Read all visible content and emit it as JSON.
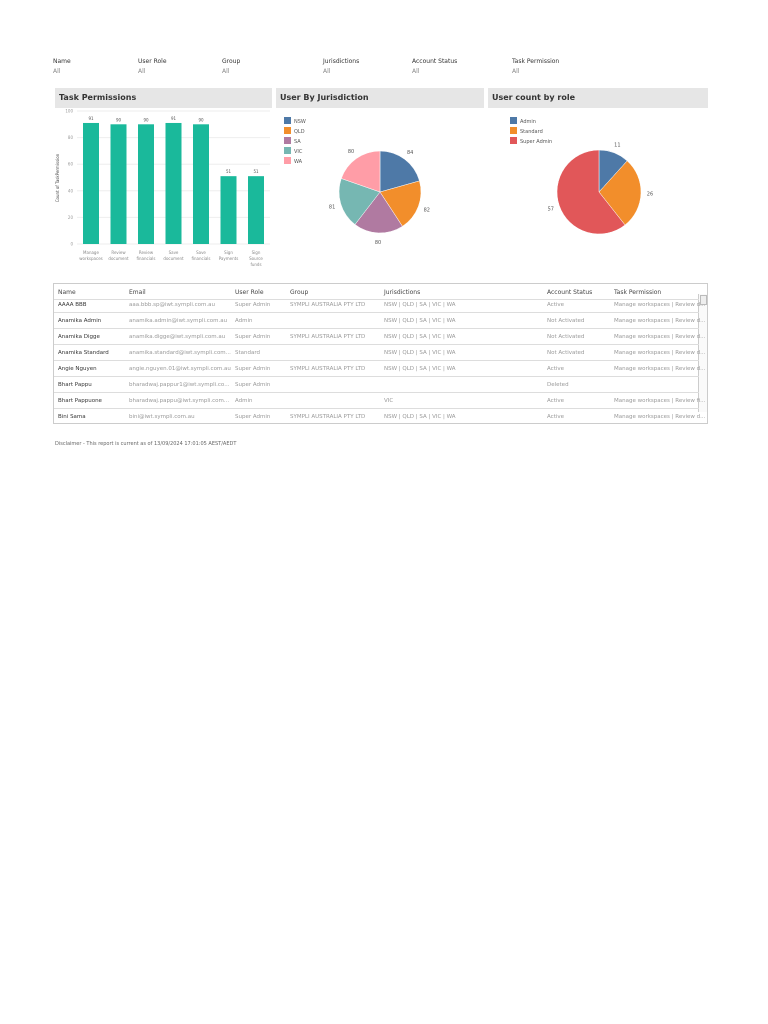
{
  "filters": [
    {
      "label": "Name",
      "value": "All"
    },
    {
      "label": "User Role",
      "value": "All"
    },
    {
      "label": "Group",
      "value": "All"
    },
    {
      "label": "Jurisdictions",
      "value": "All"
    },
    {
      "label": "Account Status",
      "value": "All"
    },
    {
      "label": "Task Permission",
      "value": "All"
    }
  ],
  "panels": {
    "task": "Task Permissions",
    "jur": "User By Jurisdiction",
    "role": "User count by role"
  },
  "chart_data": [
    {
      "type": "bar",
      "title": "Task Permissions",
      "ylabel": "Count of TaskPermission",
      "ylim": [
        0,
        100
      ],
      "yticks": [
        "0",
        "20",
        "40",
        "60",
        "80",
        "100"
      ],
      "categories": [
        "Manage workspaces",
        "Review document",
        "Review financials",
        "Save document",
        "Save financials",
        "Sign Payments",
        "Sign Source funds"
      ],
      "values": [
        91,
        90,
        90,
        91,
        90,
        51,
        51
      ],
      "color": "#1ab99b"
    },
    {
      "type": "pie",
      "title": "User By Jurisdiction",
      "categories": [
        "NSW",
        "QLD",
        "SA",
        "VIC",
        "WA"
      ],
      "values": [
        84,
        82,
        80,
        81,
        80
      ],
      "colors": [
        "#4e79a7",
        "#f28e2b",
        "#b07aa1",
        "#76b7b2",
        "#ff9da7"
      ],
      "legend": "top-left"
    },
    {
      "type": "pie",
      "title": "User count by role",
      "categories": [
        "Admin",
        "Standard",
        "Super Admin"
      ],
      "values": [
        11,
        26,
        57
      ],
      "colors": [
        "#4e79a7",
        "#f28e2b",
        "#e15759"
      ],
      "legend": "top-left"
    }
  ],
  "table": {
    "headers": [
      "Name",
      "Email",
      "User Role",
      "Group",
      "Jurisdictions",
      "Account Status",
      "Task Permission"
    ],
    "rows": [
      [
        "AAAA BBB",
        "aaa.bbb.sp@iwt.sympli.com.au",
        "Super Admin",
        "SYMPLI AUSTRALIA PTY LTD",
        "NSW | QLD | SA | VIC | WA",
        "Active",
        "Manage workspaces | Review d..."
      ],
      [
        "Anamika Admin",
        "anamika.admin@iwt.sympli.com.au",
        "Admin",
        "",
        "NSW | QLD | SA | VIC | WA",
        "Not Activated",
        "Manage workspaces | Review d..."
      ],
      [
        "Anamika Digge",
        "anamika.digge@iwt.sympli.com.au",
        "Super Admin",
        "SYMPLI AUSTRALIA PTY LTD",
        "NSW | QLD | SA | VIC | WA",
        "Not Activated",
        "Manage workspaces | Review d..."
      ],
      [
        "Anamika Standard",
        "anamika.standard@iwt.sympli.com...",
        "Standard",
        "",
        "NSW | QLD | SA | VIC | WA",
        "Not Activated",
        "Manage workspaces | Review d..."
      ],
      [
        "Angie Nguyen",
        "angie.nguyen.01@iwt.sympli.com.au",
        "Super Admin",
        "SYMPLI AUSTRALIA PTY LTD",
        "NSW | QLD | SA | VIC | WA",
        "Active",
        "Manage workspaces | Review d..."
      ],
      [
        "Bhart Pappu",
        "bharadwaj.pappur1@iwt.sympli.co...",
        "Super Admin",
        "",
        "",
        "Deleted",
        ""
      ],
      [
        "Bhart Pappuone",
        "bharadwaj.pappu@iwt.sympli.com...",
        "Admin",
        "",
        "VIC",
        "Active",
        "Manage workspaces | Review fi..."
      ],
      [
        "Bini Sama",
        "bini@iwt.sympli.com.au",
        "Super Admin",
        "SYMPLI AUSTRALIA PTY LTD",
        "NSW | QLD | SA | VIC | WA",
        "Active",
        "Manage workspaces | Review d..."
      ]
    ]
  },
  "disclaimer": "Disclaimer - This report is current as of 13/09/2024 17:01:05 AEST/AEDT"
}
